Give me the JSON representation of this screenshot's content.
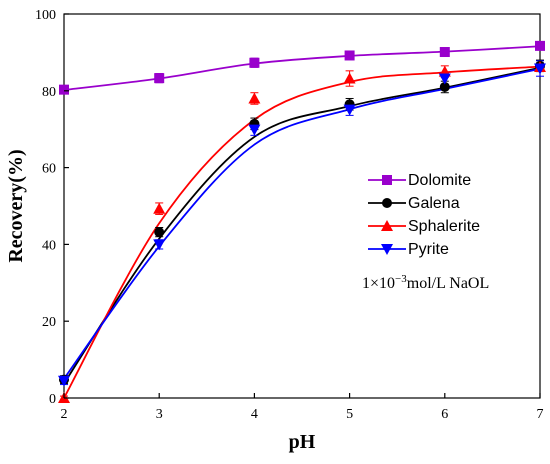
{
  "chart_data": {
    "type": "line",
    "xlabel": "pH",
    "ylabel": "Recovery(%)",
    "xlim": [
      2,
      7
    ],
    "ylim": [
      0,
      100
    ],
    "xticks": [
      2,
      3,
      4,
      5,
      6,
      7
    ],
    "yticks": [
      0,
      20,
      40,
      60,
      80,
      100
    ],
    "grid": false,
    "legend_position": "right-middle",
    "annotation": {
      "base": "1×10",
      "exponent": "−3",
      "unit": "mol/L NaOL"
    },
    "series": [
      {
        "name": "Dolomite",
        "color": "#9900cc",
        "marker": "square",
        "x": [
          2,
          3,
          4,
          5,
          6,
          7
        ],
        "y": [
          80.3,
          83.3,
          87.3,
          89.2,
          90.1,
          91.7
        ],
        "err": [
          0.8,
          1.2,
          1.2,
          1.0,
          0.9,
          0.8
        ],
        "fit": [
          80.2,
          83.2,
          87.1,
          89.1,
          90.2,
          91.6
        ]
      },
      {
        "name": "Galena",
        "color": "#000000",
        "marker": "circle",
        "x": [
          2,
          3,
          4,
          5,
          6,
          7
        ],
        "y": [
          4.8,
          43.2,
          71.4,
          76.5,
          81.0,
          86.5
        ],
        "err": [
          1.0,
          1.2,
          1.5,
          1.5,
          1.5,
          1.5
        ],
        "fit": [
          3.8,
          41.5,
          68.0,
          76.0,
          80.8,
          86.0
        ]
      },
      {
        "name": "Sphalerite",
        "color": "#ff0000",
        "marker": "triangle-up",
        "x": [
          2,
          3,
          4,
          5,
          6,
          7
        ],
        "y": [
          0.0,
          49.3,
          78.0,
          83.2,
          85.0,
          86.2
        ],
        "err": [
          0.5,
          1.5,
          1.5,
          2.0,
          1.5,
          1.0
        ],
        "fit": [
          0.0,
          45.5,
          72.5,
          82.3,
          84.8,
          86.3
        ]
      },
      {
        "name": "Pyrite",
        "color": "#0000ff",
        "marker": "triangle-down",
        "x": [
          2,
          3,
          4,
          5,
          6,
          7
        ],
        "y": [
          4.5,
          40.0,
          69.9,
          75.1,
          83.2,
          85.8
        ],
        "err": [
          1.0,
          1.2,
          1.5,
          1.5,
          1.5,
          2.0
        ],
        "fit": [
          5.0,
          39.5,
          66.0,
          75.2,
          80.5,
          85.7
        ]
      }
    ]
  }
}
